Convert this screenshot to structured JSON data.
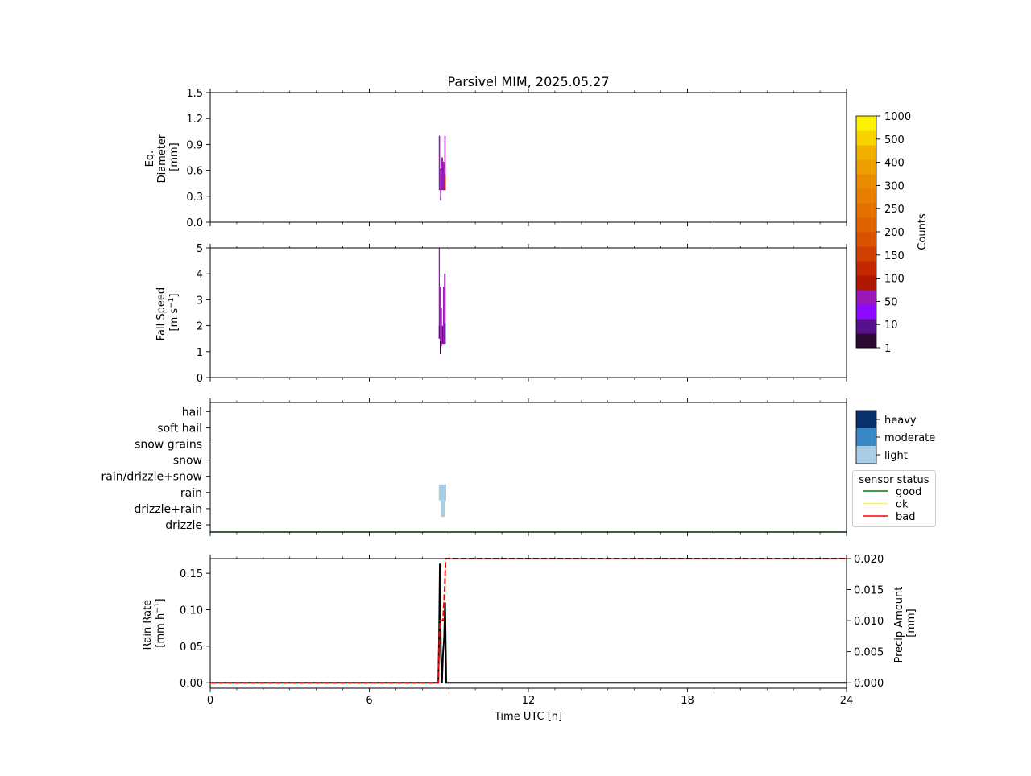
{
  "title": "Parsivel MIM, 2025.05.27",
  "chart_data": [
    {
      "type": "heatmap",
      "panel": "diameter",
      "ylabel_lines": [
        "Eq.",
        "Diameter",
        "[mm]"
      ],
      "xlim": [
        0,
        24
      ],
      "ylim": [
        0,
        1.5
      ],
      "yticks": [
        "0.0",
        "0.3",
        "0.6",
        "0.9",
        "1.2",
        "1.5"
      ],
      "ytick_values": [
        0,
        0.3,
        0.6,
        0.9,
        1.2,
        1.5
      ],
      "cells": [
        {
          "t0": 8.62,
          "t1": 8.67,
          "y0": 0.37,
          "y1": 1.0,
          "level": 3
        },
        {
          "t0": 8.67,
          "t1": 8.72,
          "y0": 0.25,
          "y1": 0.62,
          "level": 3
        },
        {
          "t0": 8.67,
          "t1": 8.72,
          "y0": 0.25,
          "y1": 0.29,
          "level": 1
        },
        {
          "t0": 8.72,
          "t1": 8.78,
          "y0": 0.37,
          "y1": 0.75,
          "level": 3
        },
        {
          "t0": 8.78,
          "t1": 8.83,
          "y0": 0.37,
          "y1": 0.7,
          "level": 3
        },
        {
          "t0": 8.83,
          "t1": 8.88,
          "y0": 0.37,
          "y1": 1.0,
          "level": 3
        },
        {
          "t0": 8.83,
          "t1": 8.88,
          "y0": 0.37,
          "y1": 0.55,
          "level": 4
        }
      ]
    },
    {
      "type": "heatmap",
      "panel": "fall_speed",
      "ylabel_line1": "Fall Speed",
      "ylabel_line2": "[m s",
      "ylabel_exp": "−1",
      "ylabel_end": "]",
      "xlim": [
        0,
        24
      ],
      "ylim": [
        0,
        5
      ],
      "yticks": [
        "0",
        "1",
        "2",
        "3",
        "4",
        "5"
      ],
      "ytick_values": [
        0,
        1,
        2,
        3,
        4,
        5
      ],
      "cells": [
        {
          "t0": 8.62,
          "t1": 8.66,
          "y0": 1.5,
          "y1": 5.0,
          "level": 3
        },
        {
          "t0": 8.62,
          "t1": 8.66,
          "y0": 1.5,
          "y1": 2.0,
          "level": 1
        },
        {
          "t0": 8.66,
          "t1": 8.7,
          "y0": 0.9,
          "y1": 3.5,
          "level": 3
        },
        {
          "t0": 8.66,
          "t1": 8.7,
          "y0": 0.9,
          "y1": 1.4,
          "level": 0
        },
        {
          "t0": 8.7,
          "t1": 8.74,
          "y0": 1.2,
          "y1": 2.7,
          "level": 3
        },
        {
          "t0": 8.74,
          "t1": 8.78,
          "y0": 1.3,
          "y1": 2.0,
          "level": 1
        },
        {
          "t0": 8.78,
          "t1": 8.82,
          "y0": 1.3,
          "y1": 3.5,
          "level": 3
        },
        {
          "t0": 8.82,
          "t1": 8.88,
          "y0": 1.3,
          "y1": 4.0,
          "level": 3
        },
        {
          "t0": 8.82,
          "t1": 8.88,
          "y0": 1.3,
          "y1": 2.1,
          "level": 1
        }
      ]
    },
    {
      "type": "heatmap",
      "panel": "precip_type",
      "xlim": [
        0,
        24
      ],
      "categories": [
        "drizzle",
        "drizzle+rain",
        "rain",
        "rain/drizzle+snow",
        "snow",
        "snow grains",
        "soft hail",
        "hail"
      ],
      "cells": [
        {
          "t0": 8.62,
          "t1": 8.7,
          "cat": "rain",
          "intensity": "light"
        },
        {
          "t0": 8.7,
          "t1": 8.84,
          "cat": "drizzle+rain",
          "intensity": "light"
        },
        {
          "t0": 8.84,
          "t1": 8.9,
          "cat": "rain",
          "intensity": "light"
        },
        {
          "t0": 8.7,
          "t1": 8.84,
          "cat": "rain",
          "intensity": "light"
        }
      ],
      "sensor_status": [
        {
          "t0": 0,
          "t1": 24,
          "status": "good"
        }
      ]
    },
    {
      "type": "line",
      "panel": "rain",
      "xlabel": "Time UTC [h]",
      "xlim": [
        0,
        24
      ],
      "xticks": [
        "0",
        "6",
        "12",
        "18",
        "24"
      ],
      "xtick_values": [
        0,
        6,
        12,
        18,
        24
      ],
      "ylabel_line1": "Rain Rate",
      "ylabel_line2": "[mm h",
      "ylabel_exp": "−1",
      "ylabel_end": "]",
      "ylim": [
        -0.0075,
        0.17
      ],
      "yticks": [
        "0.00",
        "0.05",
        "0.10",
        "0.15"
      ],
      "ytick_values": [
        0,
        0.05,
        0.1,
        0.15
      ],
      "y2label_line1": "Precip Amount",
      "y2label_line2": "[mm]",
      "y2lim": [
        -0.000882,
        0.02
      ],
      "y2ticks": [
        "0.000",
        "0.005",
        "0.010",
        "0.015",
        "0.020"
      ],
      "y2tick_values": [
        0,
        0.005,
        0.01,
        0.015,
        0.02
      ],
      "series": [
        {
          "axis": "left",
          "color": "#000000",
          "dash": "solid",
          "x": [
            0,
            8.6,
            8.63,
            8.66,
            8.7,
            8.74,
            8.78,
            8.82,
            8.86,
            8.9,
            8.93,
            24
          ],
          "y": [
            0,
            0,
            0.062,
            0.163,
            0.04,
            0.0,
            0.04,
            0.06,
            0.11,
            0.0,
            0,
            0
          ]
        },
        {
          "axis": "right",
          "color": "#ff0000",
          "dash": "dashed",
          "x": [
            0,
            8.6,
            8.66,
            8.72,
            8.78,
            8.84,
            8.88,
            8.9,
            24
          ],
          "y": [
            0,
            0,
            0.01,
            0.01,
            0.01,
            0.015,
            0.02,
            0.02,
            0.02
          ]
        }
      ]
    }
  ],
  "colorbar": {
    "label": "Counts",
    "ticks": [
      "1",
      "10",
      "50",
      "100",
      "150",
      "200",
      "250",
      "300",
      "400",
      "500",
      "1000"
    ],
    "colors": [
      "#2a0a30",
      "#55128c",
      "#8c0aff",
      "#9a18b8",
      "#b01700",
      "#c52700",
      "#d03e00",
      "#d85200",
      "#de6200",
      "#e47000",
      "#e77e00",
      "#e98c00",
      "#ed9e00",
      "#efb000",
      "#fad200",
      "#fff200"
    ]
  },
  "intensity_legend": {
    "labels": [
      "heavy",
      "moderate",
      "light"
    ],
    "colors": [
      "#08306b",
      "#3a87c6",
      "#a8cde4"
    ]
  },
  "status_legend": {
    "title": "sensor status",
    "items": [
      {
        "label": "good",
        "color": "#008000"
      },
      {
        "label": "ok",
        "color": "#ffff00"
      },
      {
        "label": "bad",
        "color": "#ff0000"
      }
    ]
  }
}
